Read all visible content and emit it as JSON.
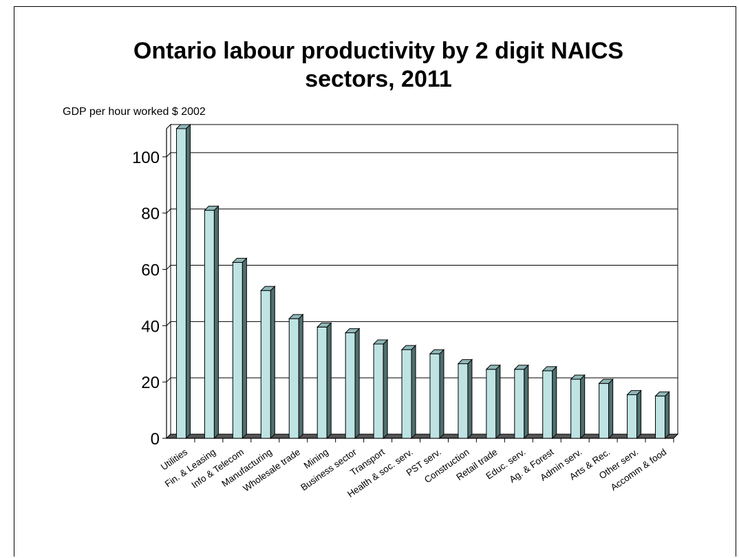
{
  "chart_data": {
    "type": "bar",
    "title_lines": [
      "Ontario labour productivity by 2 digit NAICS",
      "sectors, 2011"
    ],
    "ylabel": "GDP per hour worked $ 2002",
    "xlabel": "",
    "ylim": [
      0,
      110
    ],
    "yticks": [
      "0",
      "20",
      "40",
      "60",
      "80",
      "100"
    ],
    "grid": true,
    "legend": "none",
    "bar_color": "#bfe3e3",
    "categories": [
      "Utilities",
      "Fin. & Leasing",
      "Info & Telecom",
      "Manufacturing",
      "Wholesale trade",
      "Mining",
      "Business sector",
      "Transport",
      "Health & soc. serv.",
      "PST serv.",
      "Construction",
      "Retail trade",
      "Educ. serv.",
      "Ag. & Forest",
      "Admin serv.",
      "Arts & Rec.",
      "Other serv.",
      "Accomm & food"
    ],
    "values": [
      110,
      81,
      62.5,
      52.5,
      42.5,
      39.5,
      37.5,
      33.5,
      31.5,
      30,
      26.5,
      24.5,
      24.5,
      24,
      21,
      19.5,
      15.5,
      15
    ]
  }
}
